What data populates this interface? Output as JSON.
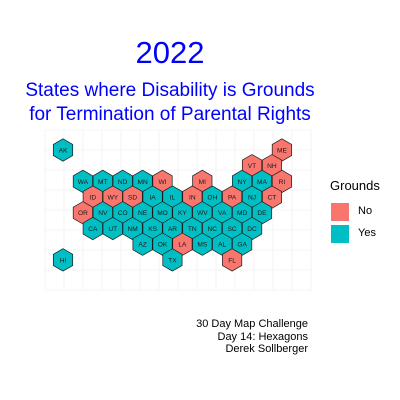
{
  "title": {
    "year": "2022",
    "line1": "States where Disability is Grounds",
    "line2": "for Termination of Parental Rights"
  },
  "legend": {
    "title": "Grounds",
    "items": [
      {
        "key": "no",
        "label": "No",
        "color": "#f8766d"
      },
      {
        "key": "yes",
        "label": "Yes",
        "color": "#00bfc4"
      }
    ]
  },
  "caption": {
    "line1": "30 Day Map Challenge",
    "line2": "Day 14: Hexagons",
    "line3": "Derek Sollberger"
  },
  "states": [
    {
      "abbr": "AK",
      "grounds": "Yes",
      "row": 0,
      "col": 0
    },
    {
      "abbr": "ME",
      "grounds": "No",
      "row": 0,
      "col": 11
    },
    {
      "abbr": "VT",
      "grounds": "No",
      "row": 1,
      "col": 9.5
    },
    {
      "abbr": "NH",
      "grounds": "No",
      "row": 1,
      "col": 10.5
    },
    {
      "abbr": "WA",
      "grounds": "Yes",
      "row": 2,
      "col": 1
    },
    {
      "abbr": "MT",
      "grounds": "Yes",
      "row": 2,
      "col": 2
    },
    {
      "abbr": "ND",
      "grounds": "Yes",
      "row": 2,
      "col": 3
    },
    {
      "abbr": "MN",
      "grounds": "Yes",
      "row": 2,
      "col": 4
    },
    {
      "abbr": "WI",
      "grounds": "No",
      "row": 2,
      "col": 5
    },
    {
      "abbr": "MI",
      "grounds": "No",
      "row": 2,
      "col": 7
    },
    {
      "abbr": "NY",
      "grounds": "Yes",
      "row": 2,
      "col": 9
    },
    {
      "abbr": "MA",
      "grounds": "Yes",
      "row": 2,
      "col": 10
    },
    {
      "abbr": "RI",
      "grounds": "No",
      "row": 2,
      "col": 11
    },
    {
      "abbr": "ID",
      "grounds": "No",
      "row": 3,
      "col": 1.5
    },
    {
      "abbr": "WY",
      "grounds": "No",
      "row": 3,
      "col": 2.5
    },
    {
      "abbr": "SD",
      "grounds": "No",
      "row": 3,
      "col": 3.5
    },
    {
      "abbr": "IA",
      "grounds": "Yes",
      "row": 3,
      "col": 4.5
    },
    {
      "abbr": "IL",
      "grounds": "Yes",
      "row": 3,
      "col": 5.5
    },
    {
      "abbr": "IN",
      "grounds": "No",
      "row": 3,
      "col": 6.5
    },
    {
      "abbr": "OH",
      "grounds": "Yes",
      "row": 3,
      "col": 7.5
    },
    {
      "abbr": "PA",
      "grounds": "No",
      "row": 3,
      "col": 8.5
    },
    {
      "abbr": "NJ",
      "grounds": "Yes",
      "row": 3,
      "col": 9.5
    },
    {
      "abbr": "CT",
      "grounds": "No",
      "row": 3,
      "col": 10.5
    },
    {
      "abbr": "OR",
      "grounds": "No",
      "row": 4,
      "col": 1
    },
    {
      "abbr": "NV",
      "grounds": "Yes",
      "row": 4,
      "col": 2
    },
    {
      "abbr": "CO",
      "grounds": "Yes",
      "row": 4,
      "col": 3
    },
    {
      "abbr": "NE",
      "grounds": "Yes",
      "row": 4,
      "col": 4
    },
    {
      "abbr": "MO",
      "grounds": "Yes",
      "row": 4,
      "col": 5
    },
    {
      "abbr": "KY",
      "grounds": "Yes",
      "row": 4,
      "col": 6
    },
    {
      "abbr": "WV",
      "grounds": "Yes",
      "row": 4,
      "col": 7
    },
    {
      "abbr": "VA",
      "grounds": "Yes",
      "row": 4,
      "col": 8
    },
    {
      "abbr": "MD",
      "grounds": "Yes",
      "row": 4,
      "col": 9
    },
    {
      "abbr": "DE",
      "grounds": "Yes",
      "row": 4,
      "col": 10
    },
    {
      "abbr": "CA",
      "grounds": "Yes",
      "row": 5,
      "col": 1.5
    },
    {
      "abbr": "UT",
      "grounds": "Yes",
      "row": 5,
      "col": 2.5
    },
    {
      "abbr": "NM",
      "grounds": "Yes",
      "row": 5,
      "col": 3.5
    },
    {
      "abbr": "KS",
      "grounds": "Yes",
      "row": 5,
      "col": 4.5
    },
    {
      "abbr": "AR",
      "grounds": "Yes",
      "row": 5,
      "col": 5.5
    },
    {
      "abbr": "TN",
      "grounds": "Yes",
      "row": 5,
      "col": 6.5
    },
    {
      "abbr": "NC",
      "grounds": "Yes",
      "row": 5,
      "col": 7.5
    },
    {
      "abbr": "SC",
      "grounds": "Yes",
      "row": 5,
      "col": 8.5
    },
    {
      "abbr": "DC",
      "grounds": "Yes",
      "row": 5,
      "col": 9.5
    },
    {
      "abbr": "AZ",
      "grounds": "Yes",
      "row": 6,
      "col": 4
    },
    {
      "abbr": "OK",
      "grounds": "Yes",
      "row": 6,
      "col": 5
    },
    {
      "abbr": "LA",
      "grounds": "No",
      "row": 6,
      "col": 6
    },
    {
      "abbr": "MS",
      "grounds": "Yes",
      "row": 6,
      "col": 7
    },
    {
      "abbr": "AL",
      "grounds": "Yes",
      "row": 6,
      "col": 8
    },
    {
      "abbr": "GA",
      "grounds": "Yes",
      "row": 6,
      "col": 9
    },
    {
      "abbr": "HI",
      "grounds": "Yes",
      "row": 7,
      "col": 0
    },
    {
      "abbr": "TX",
      "grounds": "Yes",
      "row": 7,
      "col": 5.5
    },
    {
      "abbr": "FL",
      "grounds": "No",
      "row": 7,
      "col": 8.5
    }
  ]
}
